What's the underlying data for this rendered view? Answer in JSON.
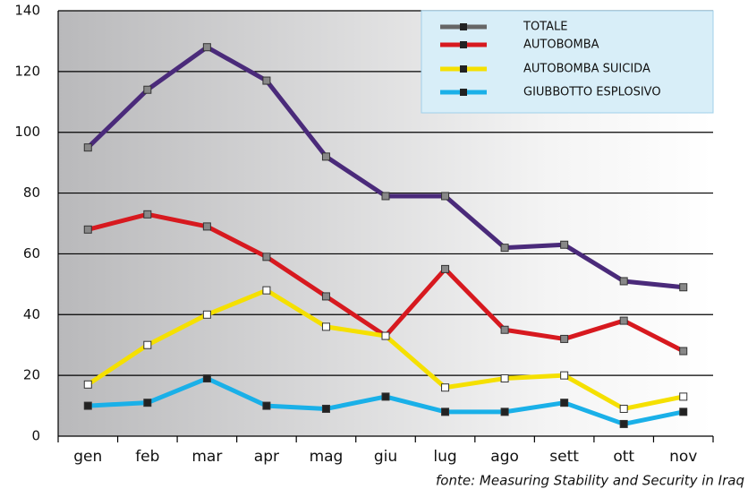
{
  "chart_data": {
    "type": "line",
    "categories": [
      "gen",
      "feb",
      "mar",
      "apr",
      "mag",
      "giu",
      "lug",
      "ago",
      "sett",
      "ott",
      "nov"
    ],
    "series": [
      {
        "name": "TOTALE",
        "color": "#4a2a7a",
        "marker": "#888888",
        "values": [
          95,
          114,
          128,
          117,
          92,
          79,
          79,
          62,
          63,
          51,
          49
        ]
      },
      {
        "name": "AUTOBOMBA",
        "color": "#d7191f",
        "marker": "#888888",
        "values": [
          68,
          73,
          69,
          59,
          46,
          33,
          55,
          35,
          32,
          38,
          28
        ]
      },
      {
        "name": "AUTOBOMBA SUICIDA",
        "color": "#f5e000",
        "marker": "#ffffff",
        "values": [
          17,
          30,
          40,
          48,
          36,
          33,
          16,
          19,
          20,
          9,
          13
        ]
      },
      {
        "name": "GIUBBOTTO ESPLOSIVO",
        "color": "#1ab0e8",
        "marker": "#222222",
        "values": [
          10,
          11,
          19,
          10,
          9,
          13,
          8,
          8,
          11,
          4,
          8
        ]
      }
    ],
    "ylim": [
      0,
      140
    ],
    "yticks": [
      0,
      20,
      40,
      60,
      80,
      100,
      120,
      140
    ],
    "grid": true,
    "legend": "top-right",
    "source": "fonte: Measuring Stability and Security in Iraq"
  }
}
